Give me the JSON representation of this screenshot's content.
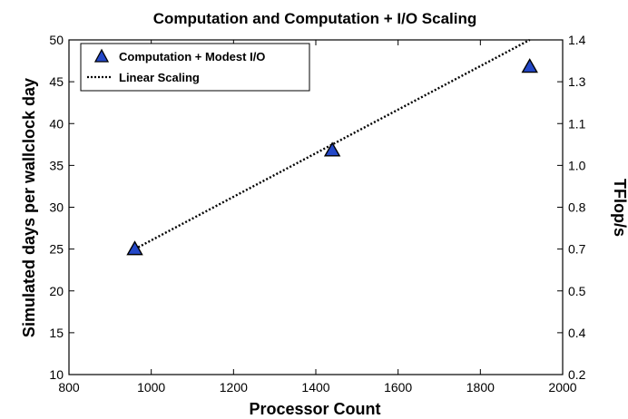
{
  "chart_data": {
    "type": "scatter",
    "title": "Computation and Computation + I/O Scaling",
    "xlabel": "Processor Count",
    "ylabel": "Simulated days per wallclock day",
    "y2label": "TFlop/s",
    "xlim": [
      800,
      2000
    ],
    "ylim": [
      10,
      50
    ],
    "y2lim": [
      0.2,
      1.4
    ],
    "x_ticks": [
      800,
      1000,
      1200,
      1400,
      1600,
      1800,
      2000
    ],
    "y_ticks": [
      10,
      15,
      20,
      25,
      30,
      35,
      40,
      45,
      50
    ],
    "y2_ticks": [
      "0.2",
      "0.4",
      "0.5",
      "0.7",
      "0.8",
      "1.0",
      "1.1",
      "1.3",
      "1.4"
    ],
    "grid": false,
    "legend_position": "top-left",
    "series": [
      {
        "name": "Computation + Modest I/O",
        "marker": "triangle",
        "color": "#2448c8",
        "x": [
          960,
          1440,
          1920
        ],
        "y": [
          25,
          36.8,
          46.8
        ]
      },
      {
        "name": "Linear Scaling",
        "style": "dotted-line",
        "color": "#000000",
        "x": [
          960,
          1920
        ],
        "y": [
          25,
          50
        ]
      }
    ]
  }
}
